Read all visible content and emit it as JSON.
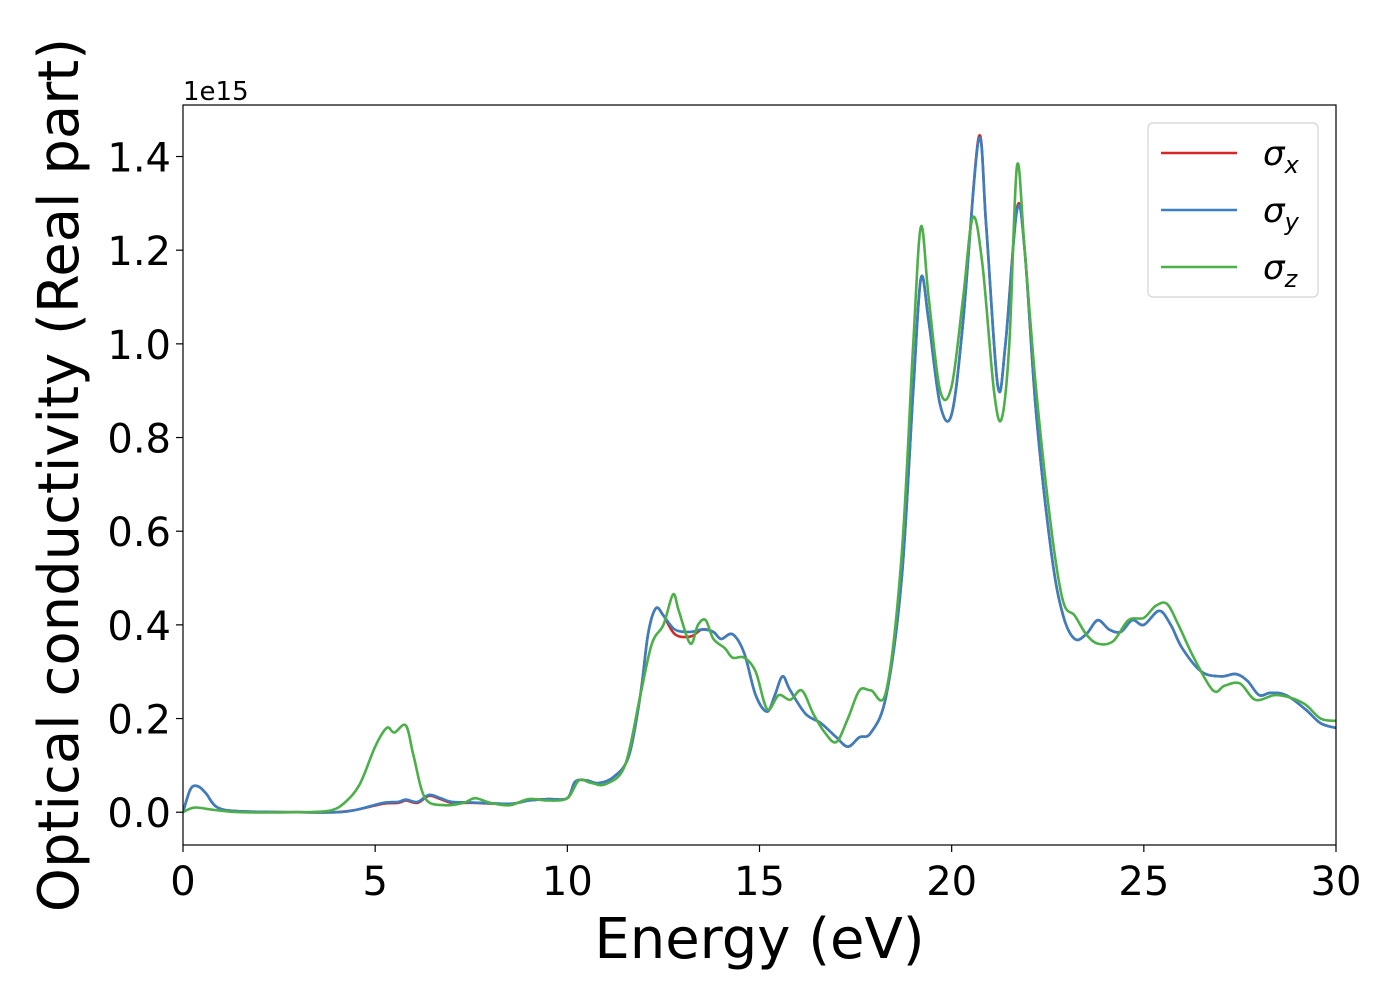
{
  "chart_data": {
    "type": "line",
    "xlabel": "Energy (eV)",
    "ylabel": "Optical conductivity (Real part)",
    "offset_text": "1e15",
    "xlim": [
      0,
      30
    ],
    "ylim": [
      -0.07,
      1.51
    ],
    "x_ticks": [
      0,
      5,
      10,
      15,
      20,
      25,
      30
    ],
    "x_tick_labels": [
      "0",
      "5",
      "10",
      "15",
      "20",
      "25",
      "30"
    ],
    "y_ticks": [
      0.0,
      0.2,
      0.4,
      0.6,
      0.8,
      1.0,
      1.2,
      1.4
    ],
    "y_tick_labels": [
      "0.0",
      "0.2",
      "0.4",
      "0.6",
      "0.8",
      "1.0",
      "1.2",
      "1.4"
    ],
    "grid": false,
    "legend_position": "top-right",
    "series": [
      {
        "name": "σx",
        "legend_symbol": "σ",
        "legend_subscript": "x",
        "color": "#d62728",
        "points": [
          [
            0,
            0.0
          ],
          [
            0.2,
            0.05
          ],
          [
            0.4,
            0.055
          ],
          [
            0.6,
            0.04
          ],
          [
            0.9,
            0.01
          ],
          [
            1.5,
            0.002
          ],
          [
            3,
            0.0
          ],
          [
            4,
            0.0
          ],
          [
            4.5,
            0.005
          ],
          [
            5.2,
            0.018
          ],
          [
            5.6,
            0.02
          ],
          [
            5.8,
            0.025
          ],
          [
            6.1,
            0.02
          ],
          [
            6.4,
            0.035
          ],
          [
            6.7,
            0.028
          ],
          [
            7,
            0.02
          ],
          [
            7.5,
            0.02
          ],
          [
            8.5,
            0.018
          ],
          [
            9,
            0.025
          ],
          [
            9.5,
            0.028
          ],
          [
            10,
            0.03
          ],
          [
            10.2,
            0.065
          ],
          [
            10.5,
            0.068
          ],
          [
            10.8,
            0.062
          ],
          [
            11.2,
            0.075
          ],
          [
            11.6,
            0.12
          ],
          [
            11.9,
            0.25
          ],
          [
            12.1,
            0.38
          ],
          [
            12.3,
            0.435
          ],
          [
            12.5,
            0.42
          ],
          [
            12.8,
            0.38
          ],
          [
            13.2,
            0.375
          ],
          [
            13.5,
            0.39
          ],
          [
            13.8,
            0.385
          ],
          [
            14.0,
            0.37
          ],
          [
            14.3,
            0.38
          ],
          [
            14.6,
            0.34
          ],
          [
            14.9,
            0.25
          ],
          [
            15.2,
            0.215
          ],
          [
            15.4,
            0.25
          ],
          [
            15.6,
            0.29
          ],
          [
            15.8,
            0.26
          ],
          [
            16.2,
            0.21
          ],
          [
            16.6,
            0.19
          ],
          [
            17.0,
            0.16
          ],
          [
            17.3,
            0.14
          ],
          [
            17.6,
            0.16
          ],
          [
            17.9,
            0.17
          ],
          [
            18.3,
            0.25
          ],
          [
            18.7,
            0.5
          ],
          [
            19.0,
            0.9
          ],
          [
            19.2,
            1.14
          ],
          [
            19.4,
            1.05
          ],
          [
            19.7,
            0.87
          ],
          [
            20.0,
            0.85
          ],
          [
            20.3,
            1.05
          ],
          [
            20.7,
            1.44
          ],
          [
            20.9,
            1.25
          ],
          [
            21.2,
            0.91
          ],
          [
            21.4,
            1.0
          ],
          [
            21.7,
            1.29
          ],
          [
            21.9,
            1.2
          ],
          [
            22.2,
            0.85
          ],
          [
            22.6,
            0.55
          ],
          [
            22.9,
            0.42
          ],
          [
            23.2,
            0.37
          ],
          [
            23.5,
            0.38
          ],
          [
            23.8,
            0.41
          ],
          [
            24.1,
            0.39
          ],
          [
            24.4,
            0.385
          ],
          [
            24.7,
            0.41
          ],
          [
            25.0,
            0.4
          ],
          [
            25.4,
            0.43
          ],
          [
            25.7,
            0.4
          ],
          [
            26.0,
            0.35
          ],
          [
            26.5,
            0.3
          ],
          [
            27.0,
            0.29
          ],
          [
            27.4,
            0.295
          ],
          [
            27.7,
            0.28
          ],
          [
            28.0,
            0.25
          ],
          [
            28.3,
            0.255
          ],
          [
            28.7,
            0.25
          ],
          [
            29.2,
            0.22
          ],
          [
            29.6,
            0.19
          ],
          [
            30,
            0.18
          ]
        ]
      },
      {
        "name": "σy",
        "legend_symbol": "σ",
        "legend_subscript": "y",
        "color": "#3a7fbf",
        "points": [
          [
            0,
            0.0
          ],
          [
            0.2,
            0.05
          ],
          [
            0.4,
            0.055
          ],
          [
            0.6,
            0.04
          ],
          [
            0.9,
            0.01
          ],
          [
            1.5,
            0.002
          ],
          [
            3,
            0.0
          ],
          [
            4,
            0.0
          ],
          [
            4.5,
            0.005
          ],
          [
            5.2,
            0.02
          ],
          [
            5.6,
            0.022
          ],
          [
            5.8,
            0.027
          ],
          [
            6.1,
            0.022
          ],
          [
            6.4,
            0.037
          ],
          [
            6.7,
            0.03
          ],
          [
            7,
            0.022
          ],
          [
            7.5,
            0.021
          ],
          [
            8.5,
            0.018
          ],
          [
            9,
            0.025
          ],
          [
            9.5,
            0.028
          ],
          [
            10,
            0.03
          ],
          [
            10.2,
            0.065
          ],
          [
            10.5,
            0.068
          ],
          [
            10.8,
            0.062
          ],
          [
            11.2,
            0.075
          ],
          [
            11.6,
            0.12
          ],
          [
            11.9,
            0.25
          ],
          [
            12.1,
            0.38
          ],
          [
            12.3,
            0.435
          ],
          [
            12.5,
            0.42
          ],
          [
            12.8,
            0.39
          ],
          [
            13.2,
            0.385
          ],
          [
            13.5,
            0.39
          ],
          [
            13.8,
            0.385
          ],
          [
            14.0,
            0.37
          ],
          [
            14.3,
            0.38
          ],
          [
            14.6,
            0.34
          ],
          [
            14.9,
            0.25
          ],
          [
            15.2,
            0.215
          ],
          [
            15.4,
            0.25
          ],
          [
            15.6,
            0.29
          ],
          [
            15.8,
            0.26
          ],
          [
            16.2,
            0.21
          ],
          [
            16.6,
            0.19
          ],
          [
            17.0,
            0.16
          ],
          [
            17.3,
            0.14
          ],
          [
            17.6,
            0.16
          ],
          [
            17.9,
            0.17
          ],
          [
            18.3,
            0.25
          ],
          [
            18.7,
            0.5
          ],
          [
            19.0,
            0.9
          ],
          [
            19.2,
            1.14
          ],
          [
            19.4,
            1.05
          ],
          [
            19.7,
            0.87
          ],
          [
            20.0,
            0.85
          ],
          [
            20.3,
            1.05
          ],
          [
            20.7,
            1.435
          ],
          [
            20.9,
            1.25
          ],
          [
            21.2,
            0.91
          ],
          [
            21.4,
            1.0
          ],
          [
            21.7,
            1.285
          ],
          [
            21.9,
            1.2
          ],
          [
            22.2,
            0.85
          ],
          [
            22.6,
            0.55
          ],
          [
            22.9,
            0.42
          ],
          [
            23.2,
            0.37
          ],
          [
            23.5,
            0.38
          ],
          [
            23.8,
            0.41
          ],
          [
            24.1,
            0.39
          ],
          [
            24.4,
            0.385
          ],
          [
            24.7,
            0.41
          ],
          [
            25.0,
            0.4
          ],
          [
            25.4,
            0.43
          ],
          [
            25.7,
            0.4
          ],
          [
            26.0,
            0.35
          ],
          [
            26.5,
            0.3
          ],
          [
            27.0,
            0.29
          ],
          [
            27.4,
            0.295
          ],
          [
            27.7,
            0.28
          ],
          [
            28.0,
            0.25
          ],
          [
            28.3,
            0.255
          ],
          [
            28.7,
            0.25
          ],
          [
            29.2,
            0.22
          ],
          [
            29.6,
            0.19
          ],
          [
            30,
            0.18
          ]
        ]
      },
      {
        "name": "σz",
        "legend_symbol": "σ",
        "legend_subscript": "z",
        "color": "#4daf4a",
        "points": [
          [
            0,
            0.0
          ],
          [
            0.3,
            0.01
          ],
          [
            0.8,
            0.005
          ],
          [
            1.5,
            0.0
          ],
          [
            3,
            0.0
          ],
          [
            3.8,
            0.003
          ],
          [
            4.2,
            0.02
          ],
          [
            4.6,
            0.06
          ],
          [
            5.0,
            0.14
          ],
          [
            5.3,
            0.18
          ],
          [
            5.5,
            0.17
          ],
          [
            5.8,
            0.185
          ],
          [
            6.0,
            0.12
          ],
          [
            6.3,
            0.03
          ],
          [
            6.8,
            0.015
          ],
          [
            7.3,
            0.02
          ],
          [
            7.6,
            0.03
          ],
          [
            8.0,
            0.02
          ],
          [
            8.5,
            0.015
          ],
          [
            9.0,
            0.028
          ],
          [
            9.5,
            0.025
          ],
          [
            10.0,
            0.03
          ],
          [
            10.3,
            0.068
          ],
          [
            10.6,
            0.063
          ],
          [
            11.0,
            0.06
          ],
          [
            11.5,
            0.1
          ],
          [
            11.9,
            0.25
          ],
          [
            12.2,
            0.36
          ],
          [
            12.5,
            0.4
          ],
          [
            12.75,
            0.465
          ],
          [
            12.9,
            0.43
          ],
          [
            13.2,
            0.36
          ],
          [
            13.4,
            0.4
          ],
          [
            13.6,
            0.41
          ],
          [
            13.8,
            0.37
          ],
          [
            14.1,
            0.35
          ],
          [
            14.3,
            0.33
          ],
          [
            14.6,
            0.33
          ],
          [
            14.9,
            0.3
          ],
          [
            15.2,
            0.22
          ],
          [
            15.5,
            0.25
          ],
          [
            15.8,
            0.24
          ],
          [
            16.1,
            0.26
          ],
          [
            16.4,
            0.21
          ],
          [
            16.7,
            0.17
          ],
          [
            17.0,
            0.15
          ],
          [
            17.3,
            0.2
          ],
          [
            17.6,
            0.26
          ],
          [
            17.9,
            0.26
          ],
          [
            18.3,
            0.26
          ],
          [
            18.7,
            0.55
          ],
          [
            19.0,
            1.0
          ],
          [
            19.2,
            1.25
          ],
          [
            19.4,
            1.1
          ],
          [
            19.7,
            0.9
          ],
          [
            20.0,
            0.91
          ],
          [
            20.3,
            1.1
          ],
          [
            20.55,
            1.27
          ],
          [
            20.8,
            1.17
          ],
          [
            21.1,
            0.9
          ],
          [
            21.3,
            0.84
          ],
          [
            21.5,
            1.0
          ],
          [
            21.7,
            1.38
          ],
          [
            21.9,
            1.2
          ],
          [
            22.2,
            0.9
          ],
          [
            22.6,
            0.6
          ],
          [
            22.9,
            0.45
          ],
          [
            23.2,
            0.42
          ],
          [
            23.5,
            0.38
          ],
          [
            23.8,
            0.36
          ],
          [
            24.2,
            0.365
          ],
          [
            24.6,
            0.41
          ],
          [
            25.0,
            0.415
          ],
          [
            25.3,
            0.44
          ],
          [
            25.6,
            0.445
          ],
          [
            25.9,
            0.4
          ],
          [
            26.3,
            0.33
          ],
          [
            26.8,
            0.26
          ],
          [
            27.1,
            0.27
          ],
          [
            27.5,
            0.275
          ],
          [
            27.9,
            0.24
          ],
          [
            28.4,
            0.25
          ],
          [
            28.8,
            0.245
          ],
          [
            29.2,
            0.23
          ],
          [
            29.6,
            0.2
          ],
          [
            30,
            0.195
          ]
        ]
      }
    ]
  }
}
